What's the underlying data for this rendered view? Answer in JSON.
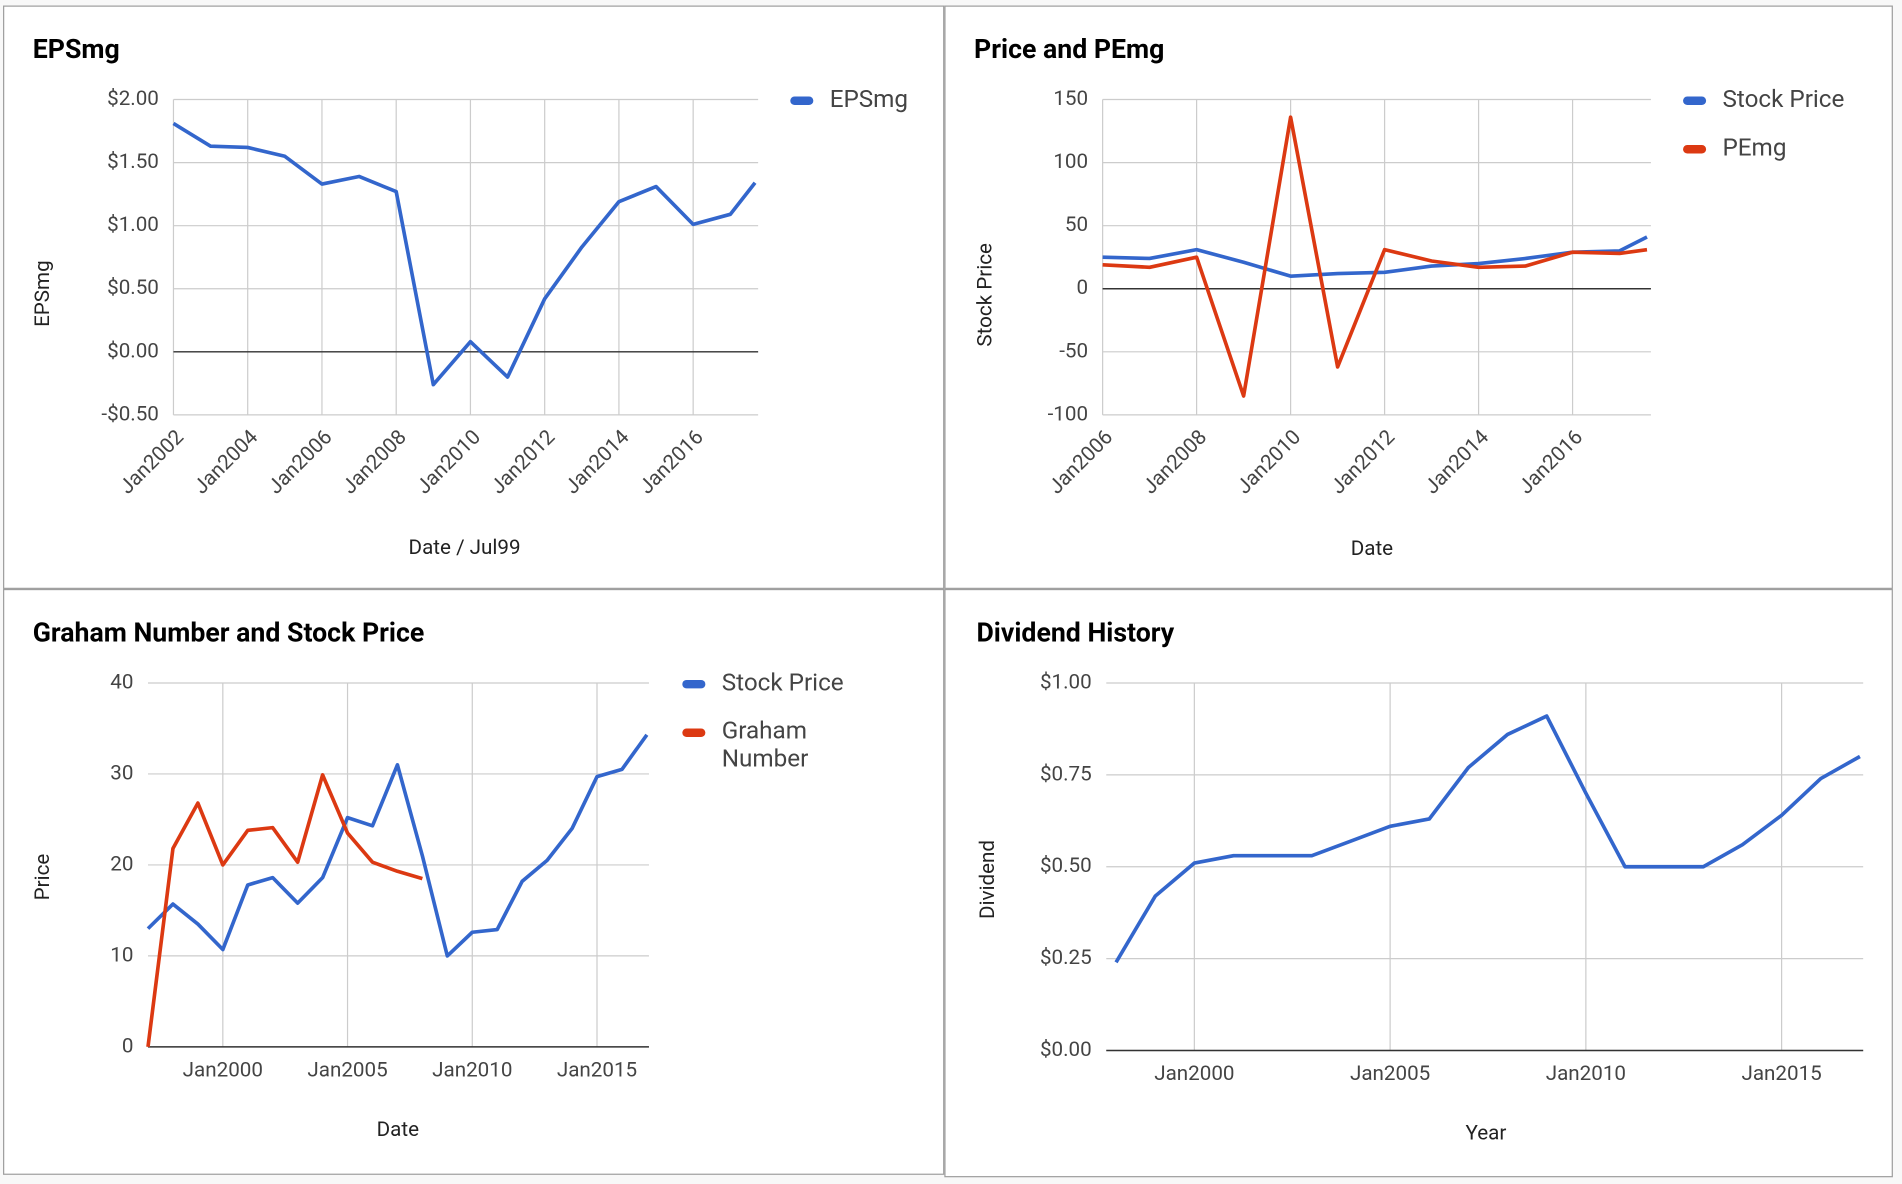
{
  "chart_data": [
    {
      "type": "line",
      "title": "EPSmg",
      "x_label": "Date / Jul99",
      "y_label": "EPSmg",
      "legend": "right",
      "grid": true,
      "x": [
        "2002-01",
        "2003-01",
        "2004-01",
        "2005-01",
        "2006-01",
        "2007-01",
        "2008-01",
        "2009-01",
        "2010-01",
        "2011-01",
        "2012-01",
        "2013-01",
        "2014-01",
        "2015-01",
        "2016-01",
        "2017-01",
        "2017-09"
      ],
      "series": [
        {
          "name": "EPSmg",
          "color": "#3366cc",
          "values": [
            1.81,
            1.63,
            1.62,
            1.55,
            1.33,
            1.39,
            1.27,
            -0.26,
            0.08,
            -0.2,
            0.42,
            0.83,
            1.19,
            1.31,
            1.01,
            1.09,
            1.34
          ]
        }
      ],
      "xlim": [
        "2002-01",
        "2017-10"
      ],
      "xticks": [
        {
          "value": "2002-01",
          "label": "Jan2002"
        },
        {
          "value": "2004-01",
          "label": "Jan2004"
        },
        {
          "value": "2006-01",
          "label": "Jan2006"
        },
        {
          "value": "2008-01",
          "label": "Jan2008"
        },
        {
          "value": "2010-01",
          "label": "Jan2010"
        },
        {
          "value": "2012-01",
          "label": "Jan2012"
        },
        {
          "value": "2014-01",
          "label": "Jan2014"
        },
        {
          "value": "2016-01",
          "label": "Jan2016"
        }
      ],
      "ylim": [
        -0.5,
        2
      ],
      "yticks": [
        {
          "value": -0.5,
          "label": "-$0.50"
        },
        {
          "value": 0,
          "label": "$0.00"
        },
        {
          "value": 0.5,
          "label": "$0.50"
        },
        {
          "value": 1,
          "label": "$1.00"
        },
        {
          "value": 1.5,
          "label": "$1.50"
        },
        {
          "value": 2,
          "label": "$2.00"
        }
      ]
    },
    {
      "type": "line",
      "title": "Price and PEmg",
      "x_label": "Date",
      "y_label": "Stock Price",
      "legend": "right",
      "grid": true,
      "x": [
        "2006-01",
        "2007-01",
        "2008-01",
        "2009-01",
        "2010-01",
        "2011-01",
        "2012-01",
        "2013-01",
        "2014-01",
        "2015-01",
        "2016-01",
        "2017-01",
        "2017-08"
      ],
      "series": [
        {
          "name": "Stock Price",
          "color": "#3366cc",
          "values": [
            25,
            24,
            31,
            21,
            10,
            12,
            13,
            18,
            20,
            24,
            29,
            30,
            41
          ]
        },
        {
          "name": "PEmg",
          "color": "#dc3912",
          "values": [
            19,
            17,
            25,
            -85,
            136,
            -62,
            31,
            22,
            17,
            18,
            29,
            28,
            31
          ]
        }
      ],
      "xlim": [
        "2006-01",
        "2017-09"
      ],
      "xticks": [
        {
          "value": "2006-01",
          "label": "Jan2006"
        },
        {
          "value": "2008-01",
          "label": "Jan2008"
        },
        {
          "value": "2010-01",
          "label": "Jan2010"
        },
        {
          "value": "2012-01",
          "label": "Jan2012"
        },
        {
          "value": "2014-01",
          "label": "Jan2014"
        },
        {
          "value": "2016-01",
          "label": "Jan2016"
        }
      ],
      "ylim": [
        -100,
        150
      ],
      "yticks": [
        -100,
        -50,
        0,
        50,
        100,
        150
      ]
    },
    {
      "type": "line",
      "title": "Graham Number and Stock Price",
      "x_label": "Date",
      "y_label": "Price",
      "legend": "right",
      "grid": true,
      "x": [
        "1997-01",
        "1998-01",
        "1999-01",
        "2000-01",
        "2001-01",
        "2002-01",
        "2003-01",
        "2004-01",
        "2005-01",
        "2006-01",
        "2007-01",
        "2008-01",
        "2009-01",
        "2010-01",
        "2011-01",
        "2012-01",
        "2013-01",
        "2014-01",
        "2015-01",
        "2016-01",
        "2017-01"
      ],
      "series": [
        {
          "name": "Stock Price",
          "color": "#3366cc",
          "values": [
            13,
            15.7,
            13.5,
            10.7,
            17.8,
            18.6,
            15.8,
            18.6,
            25.2,
            24.3,
            31,
            21,
            10,
            12.6,
            12.9,
            18.2,
            20.5,
            24,
            29.7,
            30.5,
            34.3
          ]
        },
        {
          "name": "Graham Number",
          "color": "#dc3912",
          "values": [
            0,
            21.8,
            26.8,
            20,
            23.8,
            24.1,
            20.3,
            29.9,
            23.5,
            20.3,
            19.3,
            18.5,
            null,
            null,
            null,
            null,
            null,
            null,
            null,
            null,
            null
          ]
        }
      ],
      "xlim": [
        "1997-01",
        "2017-02"
      ],
      "xticks": [
        {
          "value": "2000-01",
          "label": "Jan2000"
        },
        {
          "value": "2005-01",
          "label": "Jan2005"
        },
        {
          "value": "2010-01",
          "label": "Jan2010"
        },
        {
          "value": "2015-01",
          "label": "Jan2015"
        }
      ],
      "ylim": [
        0,
        40
      ],
      "yticks": [
        0,
        10,
        20,
        30,
        40
      ]
    },
    {
      "type": "line",
      "title": "Dividend History",
      "x_label": "Year",
      "y_label": "Dividend",
      "grid": true,
      "x": [
        "1998-01",
        "1999-01",
        "2000-01",
        "2001-01",
        "2002-01",
        "2003-01",
        "2004-01",
        "2005-01",
        "2006-01",
        "2007-01",
        "2008-01",
        "2009-01",
        "2010-01",
        "2011-01",
        "2012-01",
        "2013-01",
        "2014-01",
        "2015-01",
        "2016-01",
        "2017-01"
      ],
      "values": [
        0.24,
        0.42,
        0.51,
        0.53,
        0.53,
        0.53,
        0.57,
        0.61,
        0.63,
        0.77,
        0.86,
        0.91,
        0.7,
        0.5,
        0.5,
        0.5,
        0.56,
        0.64,
        0.74,
        0.8
      ],
      "color": "#3366cc",
      "xlim": [
        "1997-10",
        "2017-02"
      ],
      "xticks": [
        {
          "value": "2000-01",
          "label": "Jan2000"
        },
        {
          "value": "2005-01",
          "label": "Jan2005"
        },
        {
          "value": "2010-01",
          "label": "Jan2010"
        },
        {
          "value": "2015-01",
          "label": "Jan2015"
        }
      ],
      "ylim": [
        0,
        1
      ],
      "yticks": [
        {
          "value": 0,
          "label": "$0.00"
        },
        {
          "value": 0.25,
          "label": "$0.25"
        },
        {
          "value": 0.5,
          "label": "$0.50"
        },
        {
          "value": 0.75,
          "label": "$0.75"
        },
        {
          "value": 1,
          "label": "$1.00"
        }
      ]
    }
  ]
}
